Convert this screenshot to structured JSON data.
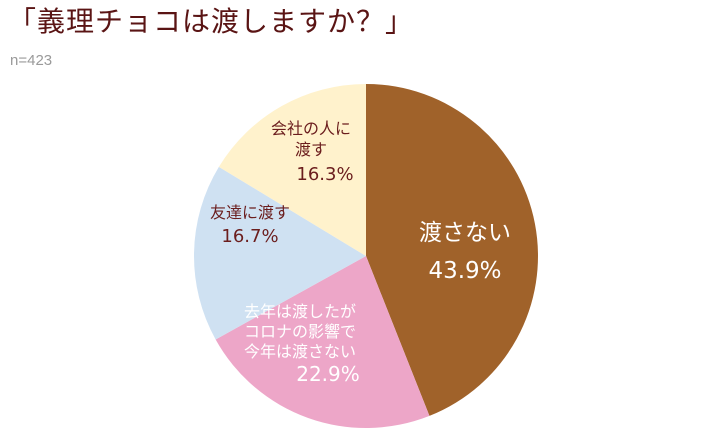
{
  "header": {
    "title": "「義理チョコは渡しますか？」",
    "sample_size": "n=423"
  },
  "chart_data": {
    "type": "pie",
    "title": "「義理チョコは渡しますか？」",
    "start": "top",
    "direction": "clockwise",
    "slices": [
      {
        "label_lines": [
          "渡さない"
        ],
        "percent_label": "43.9%",
        "value": 43.9,
        "color": "#a0622a",
        "text_color": "#ffffff"
      },
      {
        "label_lines": [
          "去年は渡したが",
          "コロナの影響で",
          "今年は渡さない"
        ],
        "percent_label": "22.9%",
        "value": 22.9,
        "color": "#eda6c8",
        "text_color": "#ffffff"
      },
      {
        "label_lines": [
          "友達に渡す"
        ],
        "percent_label": "16.7%",
        "value": 16.7,
        "color": "#cfe1f2",
        "text_color": "#6b1d1d"
      },
      {
        "label_lines": [
          "会社の人に",
          "渡す"
        ],
        "percent_label": "16.3%",
        "value": 16.3,
        "color": "#fff2cc",
        "text_color": "#6b1d1d"
      }
    ]
  }
}
